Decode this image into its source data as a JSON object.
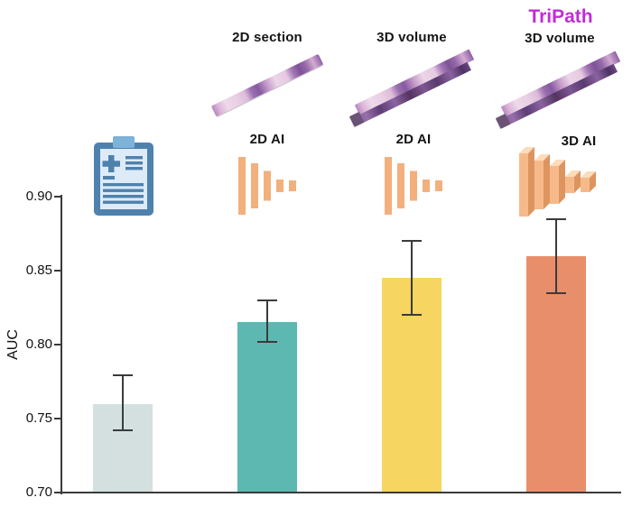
{
  "header": {
    "brand_color": "#c02ed4",
    "groups": [
      {
        "key": "report-baseline",
        "input_label": "",
        "ai_label": "",
        "input_icon": "medical-report-clipboard-icon"
      },
      {
        "key": "2d-section-2d-ai",
        "input_label": "2D section",
        "ai_label": "2D AI",
        "input_icon": "tissue-section-strip-icon",
        "ai_icon": "cnn-2d-funnel-icon"
      },
      {
        "key": "3d-volume-2d-ai",
        "input_label": "3D volume",
        "ai_label": "2D AI",
        "input_icon": "tissue-volume-block-icon",
        "ai_icon": "cnn-2d-funnel-icon"
      },
      {
        "key": "3d-volume-3d-ai",
        "brand": "TriPath",
        "input_label": "3D volume",
        "ai_label": "3D AI",
        "input_icon": "tissue-volume-block-icon",
        "ai_icon": "cnn-3d-funnel-icon"
      }
    ]
  },
  "chart_data": {
    "type": "bar",
    "title": "",
    "ylabel": "AUC",
    "ylim": [
      0.7,
      0.9
    ],
    "yticks": [
      "0.70",
      "0.75",
      "0.80",
      "0.85",
      "0.90"
    ],
    "grid": false,
    "legend": null,
    "categories": [
      "medical report (icon only)",
      "2D section + 2D AI",
      "3D volume + 2D AI",
      "3D volume + 3D AI (TriPath)"
    ],
    "values": [
      0.76,
      0.815,
      0.845,
      0.86
    ],
    "error_low": [
      0.742,
      0.802,
      0.82,
      0.835
    ],
    "error_high": [
      0.779,
      0.83,
      0.87,
      0.885
    ],
    "bar_colors": [
      "#d4e0e0",
      "#5cb8b1",
      "#f6d560",
      "#e88e6a"
    ],
    "error_color": "#3b3b3b",
    "axis_color": "#3a3a3a"
  },
  "palette": {
    "clipboard_frame": "#4f81ad",
    "clipboard_paper": "#dcebf7",
    "clipboard_clip": "#7db2d9",
    "cnn_orange": "#f2b07d",
    "cnn3d_front": "#f6ba8a",
    "cnn3d_top": "#fcdcba",
    "cnn3d_side": "#dd9560",
    "tissue_pink": "#e9cfe4",
    "tissue_purple": "#865aa2"
  }
}
